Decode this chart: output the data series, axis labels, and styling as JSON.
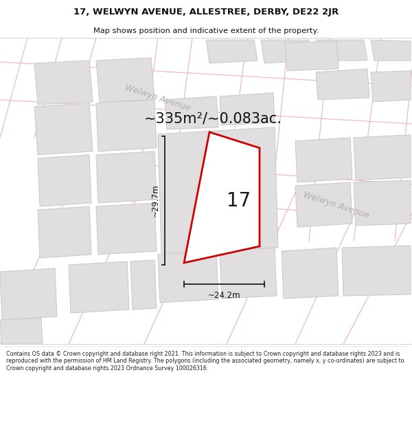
{
  "title_line1": "17, WELWYN AVENUE, ALLESTREE, DERBY, DE22 2JR",
  "title_line2": "Map shows position and indicative extent of the property.",
  "area_text": "~335m²/~0.083ac.",
  "dim_width": "~24.2m",
  "dim_height": "~29.7m",
  "property_label": "17",
  "road_label_tl": "Welwyn Avenue",
  "road_label_r": "Welwyn Avenue",
  "copyright_text": "Contains OS data © Crown copyright and database right 2021. This information is subject to Crown copyright and database rights 2023 and is reproduced with the permission of HM Land Registry. The polygons (including the associated geometry, namely x, y co-ordinates) are subject to Crown copyright and database rights 2023 Ordnance Survey 100026316.",
  "map_bg": "#f9f7f7",
  "building_face": "#e0dede",
  "building_edge": "#c8c8c8",
  "road_line": "#f0b8b8",
  "property_edge": "#cc0000",
  "property_fill": "#ffffff",
  "dim_color": "#111111",
  "title_color": "#111111",
  "area_color": "#111111",
  "road_label_color": "#b0b0b0",
  "copyright_color": "#222222"
}
